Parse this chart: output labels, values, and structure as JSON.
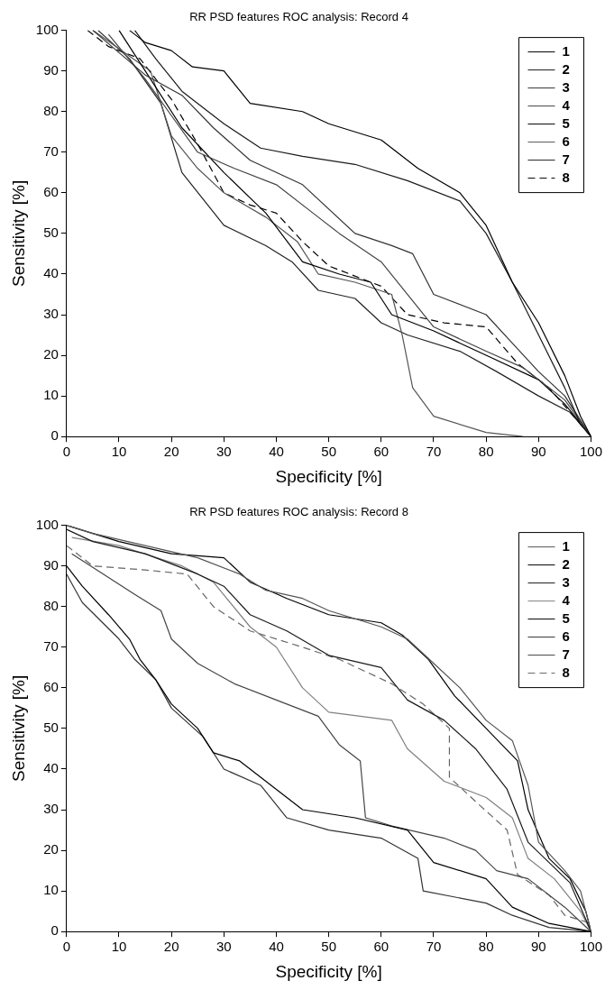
{
  "chart_data": [
    {
      "type": "line",
      "title": "RR PSD features ROC analysis: Record 4",
      "xlabel": "Specificity [%]",
      "ylabel": "Sensitivity [%]",
      "xlim": [
        0,
        100
      ],
      "ylim": [
        0,
        100
      ],
      "xticks": [
        0,
        10,
        20,
        30,
        40,
        50,
        60,
        70,
        80,
        90,
        100
      ],
      "yticks": [
        0,
        10,
        20,
        30,
        40,
        50,
        60,
        70,
        80,
        90,
        100
      ],
      "legend": "top right",
      "series": [
        {
          "name": "1",
          "color": "#000000",
          "x": [
            12,
            15,
            20,
            24,
            30,
            35,
            45,
            50,
            60,
            67,
            75,
            80,
            85,
            90,
            95,
            98,
            100
          ],
          "values": [
            100,
            97,
            95,
            91,
            90,
            82,
            80,
            77,
            73,
            66,
            60,
            52,
            38,
            28,
            15,
            5,
            0
          ]
        },
        {
          "name": "2",
          "color": "#1a1a1a",
          "x": [
            13,
            17,
            22,
            30,
            37,
            45,
            55,
            65,
            75,
            80,
            85,
            90,
            95,
            98,
            100
          ],
          "values": [
            100,
            93,
            85,
            77,
            71,
            69,
            67,
            63,
            58,
            50,
            38,
            25,
            12,
            3,
            0
          ]
        },
        {
          "name": "3",
          "color": "#333333",
          "x": [
            5,
            15,
            22,
            28,
            35,
            45,
            55,
            62,
            66,
            70,
            80,
            85,
            90,
            95,
            100
          ],
          "values": [
            100,
            89,
            84,
            76,
            68,
            62,
            50,
            47,
            45,
            35,
            30,
            23,
            16,
            10,
            0
          ]
        },
        {
          "name": "4",
          "color": "#444444",
          "x": [
            8,
            15,
            20,
            25,
            32,
            40,
            47,
            52,
            60,
            70,
            80,
            87,
            95,
            100
          ],
          "values": [
            99,
            88,
            79,
            70,
            66,
            62,
            55,
            50,
            43,
            27,
            21,
            17,
            9,
            0
          ]
        },
        {
          "name": "5",
          "color": "#000000",
          "x": [
            10,
            16,
            22,
            30,
            38,
            45,
            52,
            58,
            62,
            70,
            80,
            90,
            95,
            100
          ],
          "values": [
            100,
            88,
            76,
            65,
            55,
            43,
            40,
            38,
            30,
            26,
            20,
            14,
            8,
            0
          ]
        },
        {
          "name": "6",
          "color": "#555555",
          "x": [
            5,
            16,
            20,
            25,
            30,
            38,
            44,
            48,
            55,
            62,
            64,
            66,
            70,
            80,
            87
          ],
          "values": [
            100,
            90,
            74,
            66,
            60,
            54,
            48,
            40,
            38,
            35,
            25,
            12,
            5,
            1,
            0
          ]
        },
        {
          "name": "7",
          "color": "#222222",
          "x": [
            6,
            12,
            18,
            22,
            30,
            38,
            43,
            48,
            55,
            60,
            65,
            75,
            82,
            90,
            96,
            100
          ],
          "values": [
            100,
            93,
            82,
            65,
            52,
            47,
            43,
            36,
            34,
            28,
            25,
            21,
            16,
            10,
            6,
            0
          ]
        },
        {
          "name": "8",
          "color": "#000000",
          "line_style": "dashed",
          "x": [
            4,
            8,
            14,
            20,
            25,
            30,
            35,
            40,
            45,
            50,
            60,
            65,
            72,
            80,
            86,
            92,
            100
          ],
          "values": [
            100,
            96,
            93,
            83,
            72,
            60,
            57,
            55,
            48,
            42,
            37,
            30,
            28,
            27,
            18,
            12,
            0
          ]
        }
      ]
    },
    {
      "type": "line",
      "title": "RR PSD features ROC analysis: Record 8",
      "xlabel": "Specificity [%]",
      "ylabel": "Sensitivity [%]",
      "xlim": [
        0,
        100
      ],
      "ylim": [
        0,
        100
      ],
      "xticks": [
        0,
        10,
        20,
        30,
        40,
        50,
        60,
        70,
        80,
        90,
        100
      ],
      "yticks": [
        0,
        10,
        20,
        30,
        40,
        50,
        60,
        70,
        80,
        90,
        100
      ],
      "legend": "top right",
      "series": [
        {
          "name": "1",
          "color": "#555555",
          "x": [
            0,
            5,
            15,
            25,
            33,
            38,
            45,
            50,
            60,
            65,
            70,
            75,
            80,
            85,
            88,
            90,
            95,
            98,
            100
          ],
          "values": [
            100,
            98,
            95,
            92,
            88,
            84,
            82,
            79,
            75,
            72,
            66,
            60,
            52,
            47,
            36,
            22,
            15,
            10,
            0
          ]
        },
        {
          "name": "2",
          "color": "#000000",
          "x": [
            0,
            10,
            20,
            30,
            35,
            42,
            50,
            60,
            64,
            69,
            74,
            80,
            86,
            88,
            92,
            96,
            99,
            100
          ],
          "values": [
            100,
            96,
            93,
            92,
            86,
            82,
            78,
            76,
            73,
            67,
            58,
            50,
            42,
            30,
            18,
            13,
            5,
            0
          ]
        },
        {
          "name": "3",
          "color": "#1a1a1a",
          "x": [
            0,
            5,
            15,
            25,
            30,
            35,
            42,
            50,
            60,
            65,
            72,
            78,
            84,
            88,
            92,
            96,
            100
          ],
          "values": [
            99,
            96,
            93,
            88,
            85,
            78,
            74,
            68,
            65,
            57,
            52,
            45,
            35,
            22,
            17,
            12,
            0
          ]
        },
        {
          "name": "4",
          "color": "#808080",
          "x": [
            1,
            10,
            22,
            28,
            35,
            40,
            45,
            50,
            62,
            65,
            72,
            80,
            85,
            88,
            93,
            98,
            100
          ],
          "values": [
            97,
            95,
            90,
            86,
            75,
            70,
            60,
            54,
            52,
            45,
            37,
            33,
            28,
            18,
            13,
            5,
            0
          ]
        },
        {
          "name": "5",
          "color": "#000000",
          "x": [
            0,
            3,
            8,
            12,
            14,
            17,
            20,
            25,
            28,
            33,
            40,
            45,
            55,
            65,
            70,
            80,
            85,
            92,
            100
          ],
          "values": [
            90,
            85,
            78,
            72,
            67,
            62,
            56,
            50,
            44,
            42,
            35,
            30,
            28,
            25,
            17,
            13,
            6,
            2,
            0
          ]
        },
        {
          "name": "6",
          "color": "#333333",
          "x": [
            0,
            3,
            10,
            13,
            17,
            20,
            26,
            30,
            37,
            42,
            50,
            60,
            67,
            68,
            80,
            85,
            92,
            100
          ],
          "values": [
            88,
            81,
            72,
            67,
            62,
            55,
            48,
            40,
            36,
            28,
            25,
            23,
            18,
            10,
            7,
            4,
            1,
            0
          ]
        },
        {
          "name": "7",
          "color": "#444444",
          "x": [
            1,
            7,
            13,
            18,
            20,
            25,
            32,
            40,
            48,
            52,
            56,
            57,
            62,
            72,
            78,
            82,
            88,
            95,
            100
          ],
          "values": [
            93,
            88,
            83,
            79,
            72,
            66,
            61,
            57,
            53,
            46,
            42,
            28,
            26,
            23,
            20,
            15,
            13,
            6,
            0
          ]
        },
        {
          "name": "8",
          "color": "#666666",
          "line_style": "dashed",
          "x": [
            0,
            5,
            15,
            23,
            28,
            35,
            45,
            52,
            62,
            68,
            73,
            73,
            78,
            84,
            86,
            92,
            95,
            100
          ],
          "values": [
            95,
            90,
            89,
            88,
            80,
            74,
            70,
            67,
            61,
            56,
            50,
            38,
            32,
            25,
            14,
            9,
            4,
            2
          ]
        }
      ]
    }
  ]
}
